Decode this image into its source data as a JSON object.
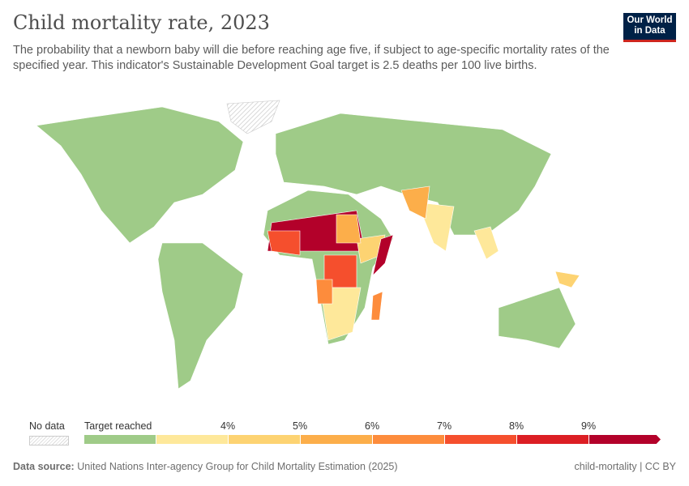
{
  "header": {
    "title": "Child mortality rate, 2023",
    "subtitle": "The probability that a newborn baby will die before reaching age five, if subject to age-specific mortality rates of the specified year. This indicator's Sustainable Development Goal target is 2.5 deaths per 100 live births.",
    "logo": "Our World in Data"
  },
  "legend": {
    "no_data": "No data",
    "bins": [
      {
        "label": "Target reached",
        "color": "#9fcb88"
      },
      {
        "label": "",
        "color": "#fee89a"
      },
      {
        "label": "4%",
        "color": "#fdd372"
      },
      {
        "label": "5%",
        "color": "#fcae4a"
      },
      {
        "label": "6%",
        "color": "#fd8c3c"
      },
      {
        "label": "7%",
        "color": "#f54f2d"
      },
      {
        "label": "8%",
        "color": "#dc1e24"
      },
      {
        "label": "9%",
        "color": "#b3012a"
      }
    ]
  },
  "footer": {
    "source_label": "Data source:",
    "source": "United Nations Inter-agency Group for Child Mortality Estimation (2025)",
    "license": "child-mortality | CC BY"
  }
}
